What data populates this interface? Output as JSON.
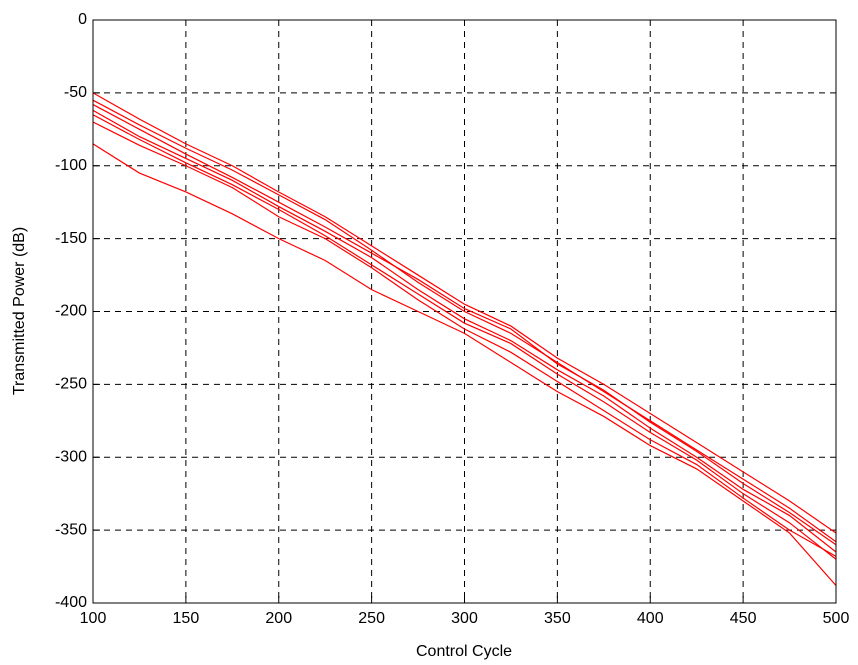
{
  "chart_data": {
    "type": "line",
    "xlabel": "Control Cycle",
    "ylabel": "Transmitted Power (dB)",
    "x": [
      100,
      125,
      150,
      175,
      200,
      225,
      250,
      275,
      300,
      325,
      350,
      375,
      400,
      425,
      450,
      475,
      500
    ],
    "series": [
      {
        "color": "#ff0000",
        "values": [
          -85,
          -105,
          -118,
          -133,
          -150,
          -165,
          -185,
          -200,
          -215,
          -235,
          -255,
          -272,
          -292,
          -308,
          -330,
          -352,
          -388
        ]
      },
      {
        "color": "#ff0000",
        "values": [
          -55,
          -72,
          -88,
          -103,
          -120,
          -137,
          -158,
          -180,
          -200,
          -215,
          -235,
          -255,
          -275,
          -295,
          -315,
          -335,
          -358
        ]
      },
      {
        "color": "#ff0000",
        "values": [
          -50,
          -68,
          -85,
          -100,
          -118,
          -135,
          -155,
          -175,
          -195,
          -210,
          -232,
          -250,
          -270,
          -290,
          -310,
          -330,
          -352
        ]
      },
      {
        "color": "#ff0000",
        "values": [
          -62,
          -80,
          -95,
          -110,
          -128,
          -145,
          -163,
          -185,
          -205,
          -220,
          -240,
          -258,
          -280,
          -300,
          -322,
          -340,
          -365
        ]
      },
      {
        "color": "#ff0000",
        "values": [
          -65,
          -82,
          -98,
          -113,
          -130,
          -148,
          -168,
          -188,
          -208,
          -222,
          -243,
          -262,
          -283,
          -302,
          -325,
          -345,
          -370
        ]
      },
      {
        "color": "#ff0000",
        "values": [
          -58,
          -75,
          -92,
          -108,
          -125,
          -142,
          -160,
          -178,
          -198,
          -212,
          -236,
          -254,
          -276,
          -296,
          -318,
          -338,
          -360
        ]
      },
      {
        "color": "#ff0000",
        "values": [
          -70,
          -86,
          -100,
          -115,
          -135,
          -150,
          -170,
          -192,
          -212,
          -228,
          -248,
          -268,
          -288,
          -305,
          -328,
          -350,
          -368
        ]
      }
    ],
    "xlim": [
      100,
      500
    ],
    "xticks": [
      100,
      150,
      200,
      250,
      300,
      350,
      400,
      450,
      500
    ],
    "ylim": [
      -400,
      0
    ],
    "yticks": [
      -400,
      -350,
      -300,
      -250,
      -200,
      -150,
      -100,
      -50,
      0
    ],
    "grid": true
  }
}
